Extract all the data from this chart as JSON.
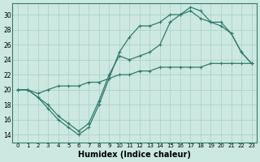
{
  "xlabel": "Humidex (Indice chaleur)",
  "background_color": "#cce8e0",
  "line_color": "#2e7d6e",
  "xlim": [
    -0.5,
    23.5
  ],
  "ylim": [
    13.0,
    31.5
  ],
  "yticks": [
    14,
    16,
    18,
    20,
    22,
    24,
    26,
    28,
    30
  ],
  "xticks": [
    0,
    1,
    2,
    3,
    4,
    5,
    6,
    7,
    8,
    9,
    10,
    11,
    12,
    13,
    14,
    15,
    16,
    17,
    18,
    19,
    20,
    21,
    22,
    23
  ],
  "line1_x": [
    0,
    1,
    2,
    3,
    4,
    5,
    6,
    7,
    8,
    9,
    10,
    11,
    12,
    13,
    14,
    15,
    16,
    17,
    18,
    19,
    20,
    21,
    22,
    23
  ],
  "line1_y": [
    20.0,
    20.0,
    19.0,
    17.5,
    16.0,
    15.0,
    14.0,
    15.0,
    18.0,
    21.5,
    25.0,
    27.0,
    28.5,
    28.5,
    29.0,
    30.0,
    30.0,
    31.0,
    30.5,
    29.0,
    29.0,
    27.5,
    25.0,
    23.5
  ],
  "line2_x": [
    0,
    1,
    2,
    3,
    4,
    5,
    6,
    7,
    8,
    9,
    10,
    11,
    12,
    13,
    14,
    15,
    16,
    17,
    18,
    19,
    20,
    21,
    22,
    23
  ],
  "line2_y": [
    20.0,
    20.0,
    19.5,
    20.0,
    20.5,
    20.5,
    20.5,
    21.0,
    21.0,
    21.5,
    22.0,
    22.0,
    22.5,
    22.5,
    23.0,
    23.0,
    23.0,
    23.0,
    23.0,
    23.5,
    23.5,
    23.5,
    23.5,
    23.5
  ],
  "line3_x": [
    0,
    1,
    2,
    3,
    4,
    5,
    6,
    7,
    8,
    9,
    10,
    11,
    12,
    13,
    14,
    15,
    16,
    17,
    18,
    19,
    20,
    21,
    22,
    23
  ],
  "line3_y": [
    20.0,
    20.0,
    19.0,
    18.0,
    16.5,
    15.5,
    14.5,
    15.5,
    18.5,
    22.0,
    24.5,
    24.0,
    24.5,
    25.0,
    26.0,
    29.0,
    30.0,
    30.5,
    29.5,
    29.0,
    28.5,
    27.5,
    25.0,
    23.5
  ]
}
